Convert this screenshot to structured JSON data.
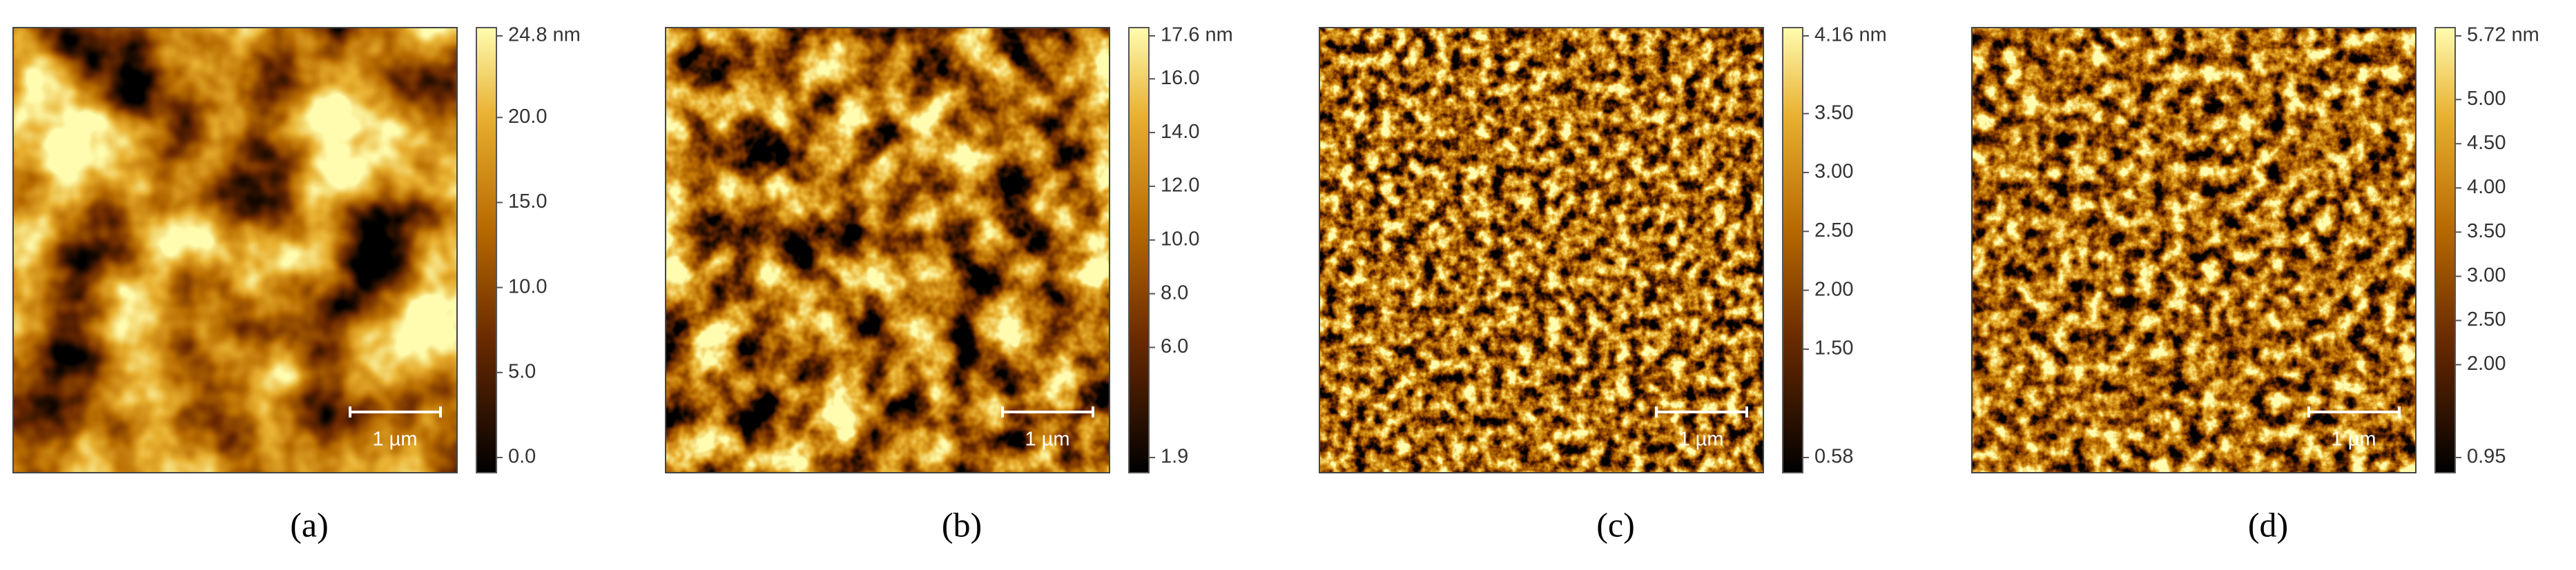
{
  "panels": [
    {
      "label": "(a)",
      "scale_bar": "1 µm",
      "colorbar": [
        "24.8 nm",
        "20.0",
        "15.0",
        "10.0",
        "5.0",
        "0.0"
      ]
    },
    {
      "label": "(b)",
      "scale_bar": "1 µm",
      "colorbar": [
        "17.6 nm",
        "16.0",
        "14.0",
        "12.0",
        "10.0",
        "8.0",
        "6.0",
        "1.9"
      ]
    },
    {
      "label": "(c)",
      "scale_bar": "1 µm",
      "colorbar": [
        "4.16 nm",
        "3.50",
        "3.00",
        "2.50",
        "2.00",
        "1.50",
        "0.58"
      ]
    },
    {
      "label": "(d)",
      "scale_bar": "1 µm",
      "colorbar": [
        "5.72 nm",
        "5.00",
        "4.50",
        "4.00",
        "3.50",
        "3.00",
        "2.50",
        "2.00",
        "0.95"
      ]
    }
  ]
}
